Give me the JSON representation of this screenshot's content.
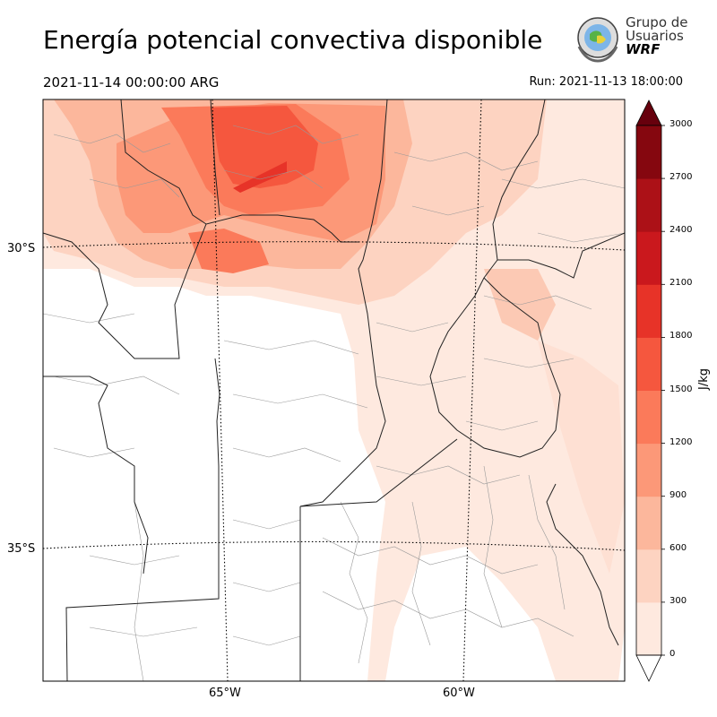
{
  "title": "Energía potencial convectiva disponible",
  "valid_time": "2021-11-14 00:00:00 ARG",
  "run_time": "Run: 2021-11-13 18:00:00",
  "logo": {
    "line1": "Grupo de",
    "line2": "Usuarios",
    "line3": "WRF"
  },
  "lat_labels": [
    "30°S",
    "35°S"
  ],
  "lon_labels": [
    "65°W",
    "60°W"
  ],
  "colorbar": {
    "unit": "J/kg",
    "ticks": [
      "0",
      "300",
      "600",
      "900",
      "1200",
      "1500",
      "1800",
      "2100",
      "2400",
      "2700",
      "3000"
    ],
    "colors": [
      "#fee9df",
      "#fdd3c1",
      "#fcb79c",
      "#fc9878",
      "#fb7a5a",
      "#f5573e",
      "#e73328",
      "#ca181d",
      "#ac1117",
      "#85070f"
    ],
    "over_color": "#67000d"
  }
}
